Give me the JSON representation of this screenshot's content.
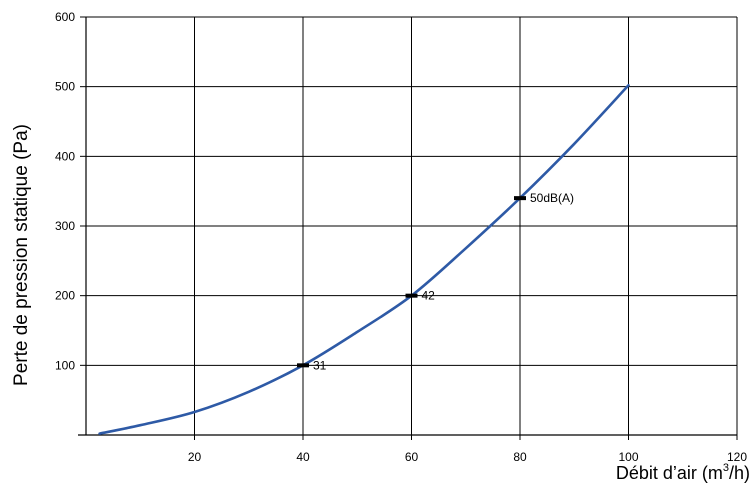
{
  "chart_data": {
    "type": "line",
    "xlabel_main": "Débit d’air (m",
    "xlabel_sup": "3",
    "xlabel_end": "/h)",
    "ylabel": "Perte de pression statique (Pa)",
    "xlim": [
      0,
      120
    ],
    "ylim": [
      0,
      600
    ],
    "x_ticks": [
      20,
      40,
      60,
      80,
      100,
      120
    ],
    "y_ticks": [
      100,
      200,
      300,
      400,
      500,
      600
    ],
    "grid": true,
    "curve_color": "#2e5aa6",
    "series": [
      {
        "x": [
          2.5,
          10,
          20,
          30,
          40,
          50,
          60,
          70,
          80,
          90,
          100
        ],
        "y": [
          2,
          14,
          33,
          62,
          100,
          148,
          200,
          268,
          340,
          418,
          502
        ]
      }
    ],
    "markers": [
      {
        "x": 40,
        "y": 100,
        "label": "31"
      },
      {
        "x": 60,
        "y": 200,
        "label": "42"
      },
      {
        "x": 80,
        "y": 340,
        "label": "50dB(A)"
      }
    ]
  }
}
